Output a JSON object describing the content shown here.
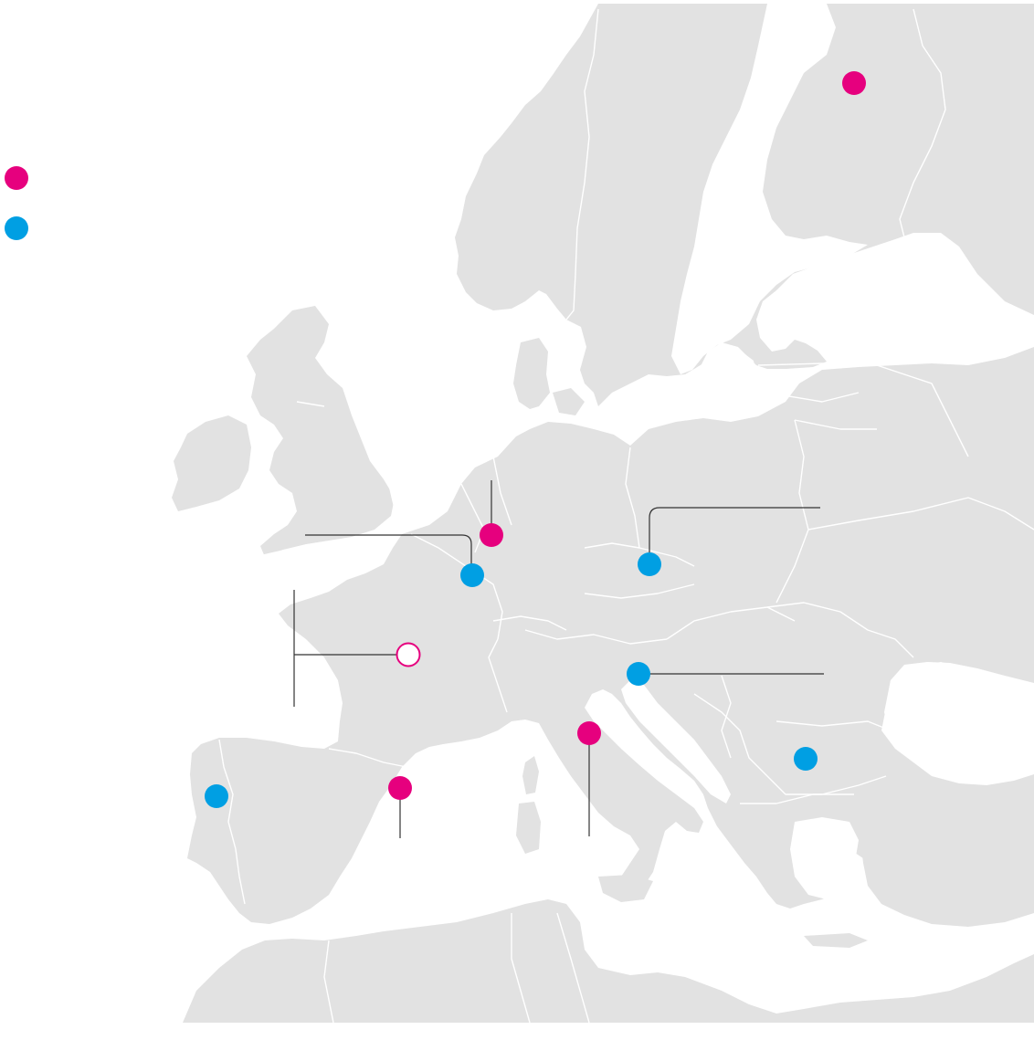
{
  "map": {
    "land_color": "#e2e2e2",
    "border_color": "#ffffff",
    "sea_color": "#ffffff",
    "leader_color": "#333333"
  },
  "legend": {
    "items": [
      {
        "key": "pink",
        "color": "#e6007e",
        "label": ""
      },
      {
        "key": "blue",
        "color": "#009fe3",
        "label": ""
      }
    ]
  },
  "locations": [
    {
      "id": "finland",
      "category": "pink",
      "style": "filled"
    },
    {
      "id": "belgium-north",
      "category": "pink",
      "style": "filled"
    },
    {
      "id": "france-north",
      "category": "blue",
      "style": "filled"
    },
    {
      "id": "czech",
      "category": "blue",
      "style": "filled"
    },
    {
      "id": "france-central",
      "category": "pink",
      "style": "outline"
    },
    {
      "id": "slovenia",
      "category": "blue",
      "style": "filled"
    },
    {
      "id": "italy-central",
      "category": "pink",
      "style": "filled"
    },
    {
      "id": "bulgaria",
      "category": "blue",
      "style": "filled"
    },
    {
      "id": "spain-northeast",
      "category": "pink",
      "style": "filled"
    },
    {
      "id": "portugal-north",
      "category": "blue",
      "style": "filled"
    }
  ]
}
